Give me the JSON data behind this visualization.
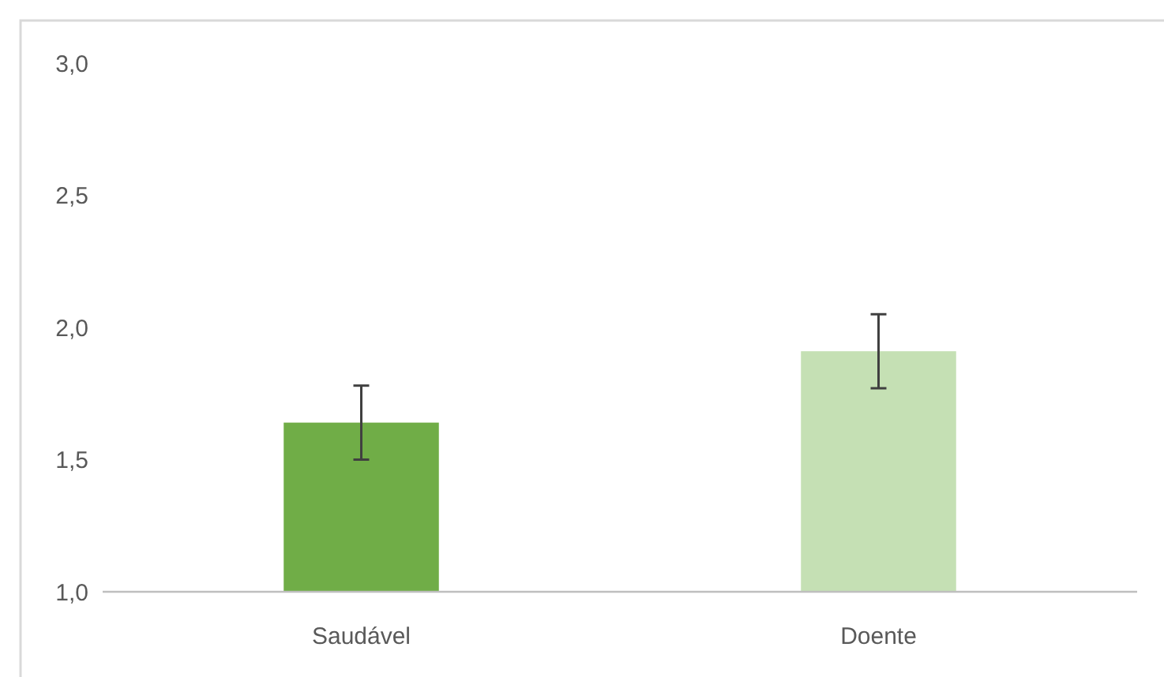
{
  "chart_data": {
    "type": "bar",
    "categories": [
      "Saudável",
      "Doente"
    ],
    "values": [
      1.64,
      1.91
    ],
    "colors": [
      "#70ad47",
      "#c5e0b4"
    ],
    "errors": [
      0.14,
      0.14
    ],
    "ylim": [
      1,
      3
    ],
    "yticks": [
      {
        "value": 1,
        "label": "1,0"
      },
      {
        "value": 1.5,
        "label": "1,5"
      },
      {
        "value": 2,
        "label": "2,0"
      },
      {
        "value": 2.5,
        "label": "2,5"
      },
      {
        "value": 3,
        "label": "3,0"
      }
    ],
    "grid": false
  }
}
